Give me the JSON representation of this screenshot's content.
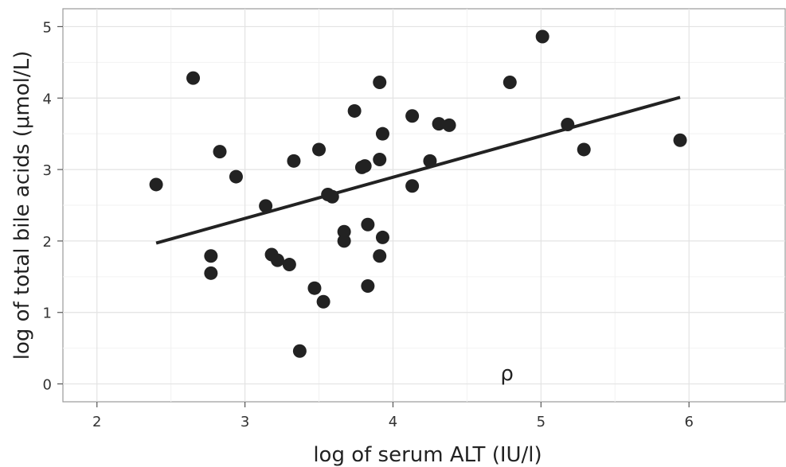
{
  "chart_data": {
    "type": "scatter",
    "title": "",
    "xlabel": "log of serum ALT (IU/l)",
    "ylabel": "log of total bile acids (μmol/L)",
    "xlim": [
      1.77,
      6.65
    ],
    "ylim": [
      -0.25,
      5.25
    ],
    "x_ticks": [
      2,
      3,
      4,
      5,
      6
    ],
    "y_ticks": [
      0,
      1,
      2,
      3,
      4,
      5
    ],
    "x_tick_labels": [
      "2",
      "3",
      "4",
      "5",
      "6"
    ],
    "y_tick_labels": [
      "0",
      "1",
      "2",
      "3",
      "4",
      "5"
    ],
    "grid": true,
    "legend": "none",
    "point_color": "#222222",
    "line_color": "#222222",
    "points": [
      {
        "x": 2.4,
        "y": 2.79
      },
      {
        "x": 2.65,
        "y": 4.28
      },
      {
        "x": 2.77,
        "y": 1.79
      },
      {
        "x": 2.77,
        "y": 1.55
      },
      {
        "x": 2.83,
        "y": 3.25
      },
      {
        "x": 2.94,
        "y": 2.9
      },
      {
        "x": 3.14,
        "y": 2.49
      },
      {
        "x": 3.18,
        "y": 1.81
      },
      {
        "x": 3.22,
        "y": 1.73
      },
      {
        "x": 3.3,
        "y": 1.67
      },
      {
        "x": 3.33,
        "y": 3.12
      },
      {
        "x": 3.37,
        "y": 0.46
      },
      {
        "x": 3.47,
        "y": 1.34
      },
      {
        "x": 3.5,
        "y": 3.28
      },
      {
        "x": 3.53,
        "y": 1.15
      },
      {
        "x": 3.56,
        "y": 2.65
      },
      {
        "x": 3.59,
        "y": 2.62
      },
      {
        "x": 3.67,
        "y": 2.13
      },
      {
        "x": 3.67,
        "y": 2.0
      },
      {
        "x": 3.74,
        "y": 3.82
      },
      {
        "x": 3.79,
        "y": 3.03
      },
      {
        "x": 3.81,
        "y": 3.05
      },
      {
        "x": 3.83,
        "y": 2.23
      },
      {
        "x": 3.83,
        "y": 1.37
      },
      {
        "x": 3.91,
        "y": 4.22
      },
      {
        "x": 3.91,
        "y": 3.14
      },
      {
        "x": 3.91,
        "y": 1.79
      },
      {
        "x": 3.93,
        "y": 3.5
      },
      {
        "x": 3.93,
        "y": 2.05
      },
      {
        "x": 4.13,
        "y": 3.75
      },
      {
        "x": 4.13,
        "y": 2.77
      },
      {
        "x": 4.25,
        "y": 3.12
      },
      {
        "x": 4.31,
        "y": 3.64
      },
      {
        "x": 4.38,
        "y": 3.62
      },
      {
        "x": 4.79,
        "y": 4.22
      },
      {
        "x": 5.01,
        "y": 4.86
      },
      {
        "x": 5.18,
        "y": 3.63
      },
      {
        "x": 5.29,
        "y": 3.28
      },
      {
        "x": 5.94,
        "y": 3.41
      }
    ],
    "regression_line": {
      "x": [
        2.4,
        5.94
      ],
      "y": [
        1.97,
        4.01
      ]
    },
    "annotations": [
      {
        "text": "ρ",
        "x": 4.77,
        "y": 0.05
      }
    ]
  }
}
